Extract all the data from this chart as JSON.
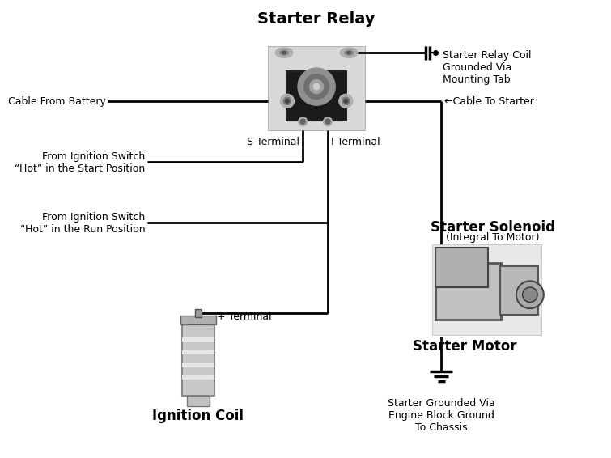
{
  "bg_color": "#ffffff",
  "line_color": "#000000",
  "labels": {
    "starter_relay": "Starter Relay",
    "starter_relay_coil": "Starter Relay Coil\nGrounded Via\nMounting Tab",
    "cable_from_battery": "Cable From Battery",
    "s_terminal": "S Terminal",
    "i_terminal": "I Terminal",
    "cable_to_starter": "←Cable To Starter",
    "from_ign_start": "From Ignition Switch\n“Hot” in the Start Position",
    "from_ign_run": "From Ignition Switch\n“Hot” in the Run Position",
    "plus_terminal": "+ Terminal",
    "ignition_coil": "Ignition Coil",
    "starter_solenoid": "Starter Solenoid",
    "starter_solenoid_sub": "(Integral To Motor)",
    "starter_motor": "Starter Motor",
    "starter_grounded": "Starter Grounded Via\nEngine Block Ground\nTo Chassis"
  }
}
